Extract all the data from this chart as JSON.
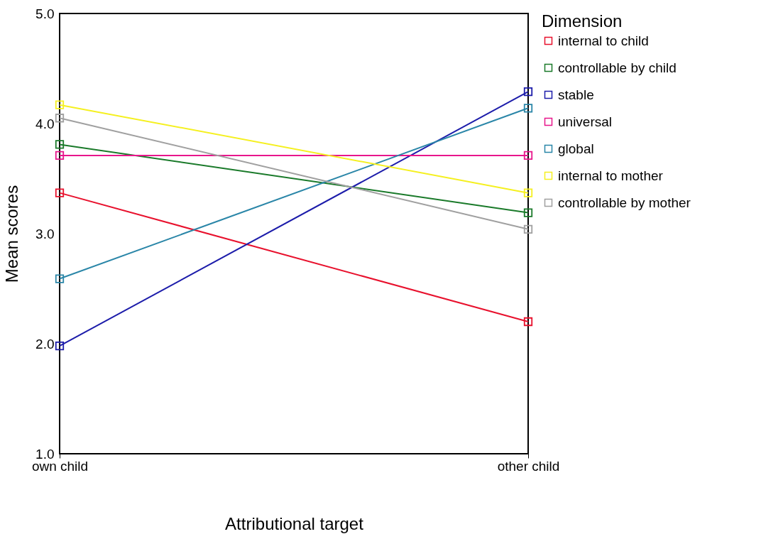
{
  "chart_data": {
    "type": "line",
    "xlabel": "Attributional target",
    "ylabel": "Mean scores",
    "legend_title": "Dimension",
    "categories": [
      "own child",
      "other child"
    ],
    "series": [
      {
        "name": "internal to child",
        "color": "#e8112d",
        "values": [
          3.37,
          2.2
        ]
      },
      {
        "name": "controllable by child",
        "color": "#1a7a2a",
        "values": [
          3.81,
          3.19
        ]
      },
      {
        "name": "stable",
        "color": "#1c1caa",
        "values": [
          1.98,
          4.29
        ]
      },
      {
        "name": "universal",
        "color": "#e8168c",
        "values": [
          3.71,
          3.71
        ]
      },
      {
        "name": "global",
        "color": "#2a86a8",
        "values": [
          2.59,
          4.14
        ]
      },
      {
        "name": "internal to mother",
        "color": "#f5f020",
        "values": [
          4.17,
          3.37
        ]
      },
      {
        "name": "controllable by mother",
        "color": "#a0a0a0",
        "values": [
          4.05,
          3.04
        ]
      }
    ],
    "ylim": [
      1.0,
      5.0
    ],
    "yticks": [
      {
        "value": 1,
        "label": "1.0"
      },
      {
        "value": 2,
        "label": "2.0"
      },
      {
        "value": 3,
        "label": "3.0"
      },
      {
        "value": 4,
        "label": "4.0"
      },
      {
        "value": 5,
        "label": "5.0"
      }
    ],
    "grid": false,
    "legend": "right",
    "marker": "square",
    "line_style": "solid"
  }
}
